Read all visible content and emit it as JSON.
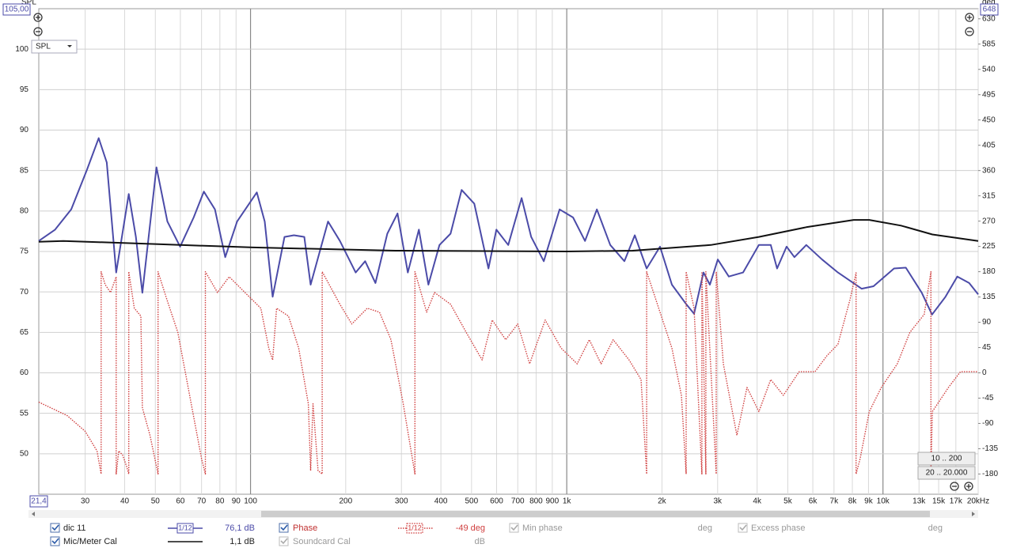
{
  "chart_data": {
    "type": "line",
    "xlog": true,
    "grid": true,
    "xlim": [
      21.4,
      20000
    ],
    "ylim": [
      45,
      105
    ],
    "y2lim": [
      -216,
      648
    ],
    "xticks": [
      30,
      40,
      50,
      60,
      70,
      80,
      90,
      100,
      200,
      300,
      400,
      500,
      600,
      700,
      800,
      900,
      {
        "value": 1000,
        "label": "1k"
      },
      {
        "value": 2000,
        "label": "2k"
      },
      {
        "value": 3000,
        "label": "3k"
      },
      {
        "value": 4000,
        "label": "4k"
      },
      {
        "value": 5000,
        "label": "5k"
      },
      {
        "value": 6000,
        "label": "6k"
      },
      {
        "value": 7000,
        "label": "7k"
      },
      {
        "value": 8000,
        "label": "8k"
      },
      {
        "value": 9000,
        "label": "9k"
      },
      {
        "value": 10000,
        "label": "10k"
      },
      {
        "value": 13000,
        "label": "13k"
      },
      {
        "value": 15000,
        "label": "15k"
      },
      {
        "value": 17000,
        "label": "17k"
      },
      {
        "value": 20000,
        "label": "20kHz"
      }
    ],
    "yticks": [
      50,
      55,
      60,
      65,
      70,
      75,
      80,
      85,
      90,
      95,
      100
    ],
    "y2ticks": [
      -180,
      -135,
      -90,
      -45,
      0,
      45,
      90,
      135,
      180,
      225,
      270,
      315,
      360,
      405,
      450,
      495,
      540,
      585,
      630
    ],
    "series": [
      {
        "name": "dic 11",
        "color": "#4b4ba8",
        "x": [
          21.4,
          24.1,
          27.1,
          30.4,
          33.1,
          35.1,
          37.6,
          41.2,
          43.4,
          45.5,
          50.4,
          54.6,
          59.9,
          66.1,
          71.2,
          77.2,
          83.2,
          90.7,
          104.7,
          110.9,
          117.5,
          128.1,
          137.2,
          147.9,
          154.9,
          175.8,
          191.7,
          215,
          230.4,
          248.3,
          270.7,
          291.7,
          314.4,
          340.8,
          365.2,
          395.8,
          429,
          465.1,
          510,
          565.5,
          599,
          653,
          720,
          772,
          846,
          949.5,
          1047,
          1142,
          1245,
          1373,
          1522,
          1641,
          1789,
          1972,
          2150,
          2385,
          2527,
          2707,
          2836,
          3004,
          3255,
          3610,
          4051,
          4416,
          4624,
          4955,
          5248,
          5721,
          6419,
          7203,
          7852,
          8560,
          9330,
          10840,
          11810,
          13260,
          14290,
          15760,
          17180,
          18730,
          20000
        ],
        "values": [
          76.3,
          77.7,
          80.2,
          85.1,
          89.0,
          86.0,
          72.4,
          82.1,
          76.8,
          69.9,
          85.4,
          78.7,
          75.6,
          79.2,
          82.4,
          80.2,
          74.3,
          78.7,
          82.3,
          78.7,
          69.4,
          76.8,
          77.0,
          76.8,
          70.9,
          78.7,
          76.3,
          72.4,
          73.8,
          71.1,
          77.2,
          79.7,
          72.4,
          77.7,
          70.9,
          75.8,
          77.2,
          82.6,
          80.9,
          72.9,
          77.7,
          75.8,
          81.6,
          76.8,
          73.8,
          80.2,
          79.2,
          76.3,
          80.2,
          75.8,
          73.8,
          77.0,
          72.9,
          75.6,
          70.9,
          68.5,
          67.3,
          72.4,
          70.9,
          74.0,
          71.9,
          72.4,
          75.8,
          75.8,
          72.9,
          75.6,
          74.3,
          75.8,
          74.0,
          72.4,
          71.4,
          70.4,
          70.7,
          72.9,
          73.0,
          69.9,
          67.2,
          69.4,
          71.9,
          71.1,
          69.7
        ]
      },
      {
        "name": "Mic/Meter Cal",
        "color": "#111111",
        "x": [
          21.4,
          25.6,
          51,
          101.7,
          287,
          1000,
          1616,
          2855,
          4051,
          5721,
          8078,
          9048,
          11400,
          14330,
          20000
        ],
        "values": [
          76.2,
          76.3,
          75.9,
          75.5,
          75.1,
          75.0,
          75.1,
          75.8,
          76.8,
          78.0,
          78.9,
          78.9,
          78.2,
          77.1,
          76.3
        ]
      },
      {
        "name": "Phase",
        "color": "#d04040",
        "axis": "y2",
        "x": [
          21.4,
          26.3,
          30.0,
          32.7,
          33.7,
          33.7,
          34.7,
          36.1,
          37.6,
          37.6,
          38.3,
          39.4,
          40.6,
          41.2,
          41.2,
          42.9,
          45.0,
          45.5,
          48.1,
          51.0,
          51.0,
          54.0,
          58.9,
          64.2,
          70.0,
          72.0,
          72.0,
          78.6,
          85.6,
          96.0,
          107.8,
          114.2,
          117.5,
          120.9,
          131.8,
          142.0,
          152.3,
          154.9,
          157.6,
          163.5,
          168.5,
          168.5,
          191.7,
          209,
          234,
          255.7,
          278,
          304,
          331,
          331,
          360.6,
          382,
          429,
          481,
          540,
          581,
          641,
          700,
          763,
          855,
          960,
          1079,
          1178,
          1284,
          1402,
          1574,
          1718,
          1789,
          1789,
          1972,
          2150,
          2304,
          2385,
          2385,
          2527,
          2676,
          2676,
          2754,
          2754,
          2969,
          2969,
          3127,
          3451,
          3715,
          4051,
          4416,
          4840,
          5433,
          6095,
          6637,
          7203,
          7852,
          8222,
          8222,
          8463,
          9048,
          9880,
          11100,
          12160,
          13500,
          14180,
          14180,
          14330,
          16100,
          17580,
          20000
        ],
        "values": [
          -52,
          -76,
          -104,
          -139,
          -180,
          180,
          157,
          143,
          171,
          -180,
          -139,
          -146,
          -167,
          -180,
          180,
          115,
          101,
          -62,
          -111,
          -180,
          180,
          136,
          72,
          -40,
          -153,
          -180,
          180,
          143,
          171,
          143,
          115,
          44,
          23,
          115,
          101,
          44,
          -55,
          -174,
          -55,
          -174,
          -180,
          180,
          122,
          87,
          115,
          108,
          59,
          -55,
          -180,
          180,
          108,
          143,
          122,
          72,
          23,
          94,
          59,
          87,
          16,
          94,
          44,
          16,
          59,
          16,
          59,
          23,
          -12,
          -180,
          180,
          108,
          44,
          -40,
          -180,
          180,
          115,
          -180,
          180,
          -180,
          180,
          -180,
          180,
          16,
          -111,
          -26,
          -69,
          -12,
          -40,
          2,
          2,
          30,
          51,
          129,
          178,
          -180,
          -153,
          -69,
          -26,
          16,
          72,
          104,
          180,
          -180,
          -69,
          -26,
          2,
          2
        ]
      }
    ]
  },
  "ui": {
    "spl_axis_label": "SPL",
    "deg_axis_label": "deg",
    "y_max_box": "105,00",
    "y2_max_box": "648",
    "x_min_box": "21,4",
    "graph_select": "SPL",
    "range_buttons": [
      "10 .. 200",
      "20 .. 20.000"
    ],
    "legend": {
      "spl_smoothing": "1/12",
      "spl_readout": "76,1 dB",
      "phase_smoothing": "1/12",
      "phase_readout": "-49 deg",
      "min_phase": "Min phase",
      "min_phase_unit": "deg",
      "excess_phase": "Excess phase",
      "excess_phase_unit": "deg",
      "cal_readout": "1,1 dB",
      "soundcard_cal": "Soundcard Cal",
      "soundcard_unit": "dB"
    }
  }
}
